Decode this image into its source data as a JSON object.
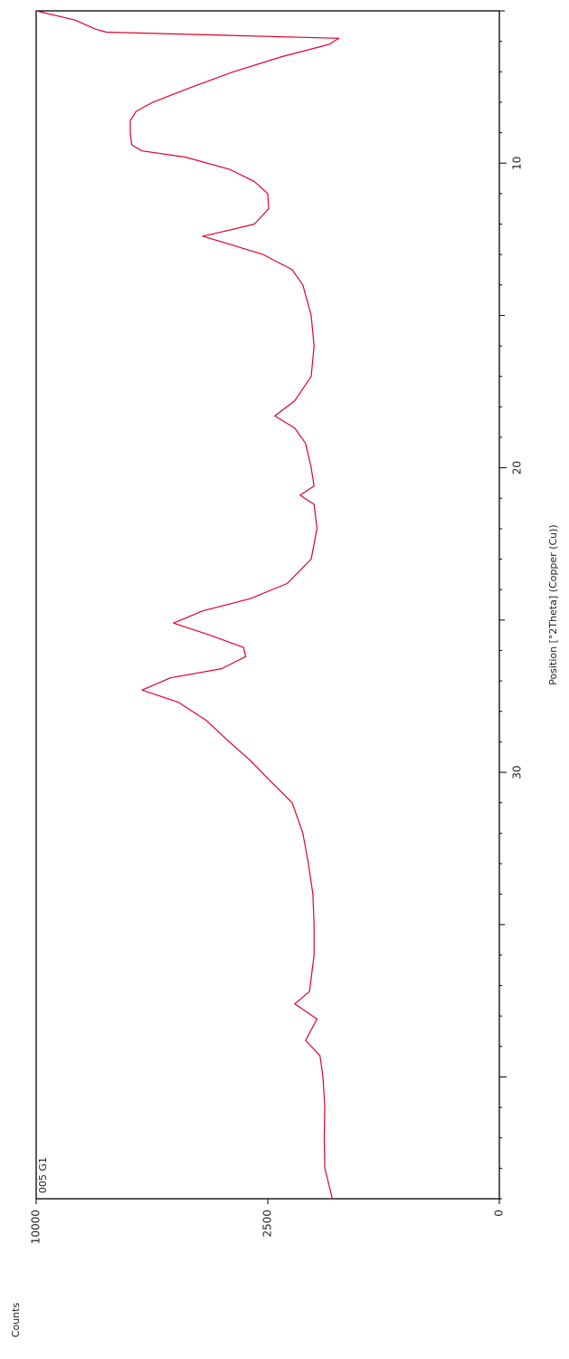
{
  "chart_data": {
    "type": "line",
    "orientation": "rotated-90-clockwise",
    "xlabel": "Position [°2Theta] (Copper (Cu))",
    "ylabel": "Counts",
    "xlim": [
      5,
      44
    ],
    "ylim": [
      0,
      10000
    ],
    "x_ticks": [
      {
        "value": 10,
        "label": "10"
      },
      {
        "value": 20,
        "label": "20"
      },
      {
        "value": 30,
        "label": "30"
      }
    ],
    "y_ticks": [
      {
        "value": 0,
        "label": "0"
      },
      {
        "value": 2500,
        "label": "2500"
      },
      {
        "value": 10000,
        "label": "10000"
      }
    ],
    "grid": false,
    "series": [
      {
        "name": "005 G1",
        "color": "#e0002a",
        "points": [
          [
            5.0,
            10000
          ],
          [
            5.3,
            8400
          ],
          [
            5.6,
            7600
          ],
          [
            5.7,
            7200
          ],
          [
            5.9,
            1200
          ],
          [
            6.1,
            1350
          ],
          [
            6.5,
            2200
          ],
          [
            7.0,
            3300
          ],
          [
            7.5,
            4400
          ],
          [
            8.0,
            5600
          ],
          [
            8.3,
            6150
          ],
          [
            8.6,
            6350
          ],
          [
            9.0,
            6350
          ],
          [
            9.4,
            6300
          ],
          [
            9.6,
            5950
          ],
          [
            9.8,
            4600
          ],
          [
            10.2,
            3400
          ],
          [
            10.6,
            2800
          ],
          [
            11.0,
            2500
          ],
          [
            11.5,
            2480
          ],
          [
            12.0,
            2800
          ],
          [
            12.2,
            3400
          ],
          [
            12.4,
            4100
          ],
          [
            12.6,
            3550
          ],
          [
            13.0,
            2600
          ],
          [
            13.5,
            2000
          ],
          [
            14.0,
            1800
          ],
          [
            15.0,
            1650
          ],
          [
            16.0,
            1600
          ],
          [
            17.0,
            1650
          ],
          [
            17.8,
            1950
          ],
          [
            18.3,
            2350
          ],
          [
            18.7,
            1950
          ],
          [
            19.2,
            1750
          ],
          [
            20.0,
            1650
          ],
          [
            20.6,
            1600
          ],
          [
            20.9,
            1850
          ],
          [
            21.2,
            1600
          ],
          [
            22.0,
            1550
          ],
          [
            23.0,
            1650
          ],
          [
            23.8,
            2100
          ],
          [
            24.3,
            2900
          ],
          [
            24.7,
            4100
          ],
          [
            25.1,
            4950
          ],
          [
            25.5,
            3900
          ],
          [
            25.9,
            3050
          ],
          [
            26.2,
            3000
          ],
          [
            26.6,
            3600
          ],
          [
            26.9,
            5050
          ],
          [
            27.3,
            5950
          ],
          [
            27.7,
            4800
          ],
          [
            28.3,
            4000
          ],
          [
            29.0,
            3400
          ],
          [
            29.6,
            2900
          ],
          [
            30.2,
            2500
          ],
          [
            31.0,
            2000
          ],
          [
            32.0,
            1800
          ],
          [
            33.0,
            1700
          ],
          [
            34.0,
            1620
          ],
          [
            35.0,
            1600
          ],
          [
            36.0,
            1600
          ],
          [
            37.2,
            1680
          ],
          [
            37.6,
            1950
          ],
          [
            38.1,
            1550
          ],
          [
            38.8,
            1750
          ],
          [
            39.3,
            1500
          ],
          [
            40.0,
            1450
          ],
          [
            41.0,
            1420
          ],
          [
            42.0,
            1430
          ],
          [
            43.0,
            1420
          ],
          [
            44.0,
            1300
          ]
        ]
      }
    ]
  }
}
